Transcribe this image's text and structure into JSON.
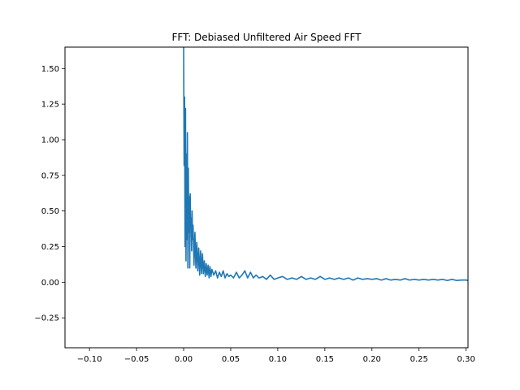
{
  "chart_data": {
    "type": "line",
    "title": "FFT: Debiased Unfiltered Air Speed FFT",
    "xlabel": "",
    "ylabel": "",
    "xlim": [
      -0.126,
      0.302
    ],
    "ylim": [
      -0.46,
      1.65
    ],
    "grid": false,
    "x_ticks": [
      -0.1,
      -0.05,
      0.0,
      0.05,
      0.1,
      0.15,
      0.2,
      0.25,
      0.3
    ],
    "x_tick_labels": [
      "−0.10",
      "−0.05",
      "0.00",
      "0.05",
      "0.10",
      "0.15",
      "0.20",
      "0.25",
      "0.30"
    ],
    "y_ticks": [
      -0.25,
      0.0,
      0.25,
      0.5,
      0.75,
      1.0,
      1.25,
      1.5
    ],
    "y_tick_labels": [
      "−0.25",
      "0.00",
      "0.25",
      "0.50",
      "0.75",
      "1.00",
      "1.25",
      "1.50"
    ],
    "series": [
      {
        "color": "#1f77b4",
        "x": [
          0.0,
          0.0005,
          0.001,
          0.0015,
          0.002,
          0.0025,
          0.003,
          0.0035,
          0.004,
          0.0045,
          0.005,
          0.0055,
          0.006,
          0.0065,
          0.007,
          0.0075,
          0.008,
          0.0085,
          0.009,
          0.0095,
          0.01,
          0.011,
          0.012,
          0.013,
          0.014,
          0.015,
          0.016,
          0.017,
          0.018,
          0.019,
          0.02,
          0.021,
          0.022,
          0.023,
          0.024,
          0.025,
          0.026,
          0.027,
          0.028,
          0.029,
          0.03,
          0.032,
          0.034,
          0.036,
          0.038,
          0.04,
          0.042,
          0.044,
          0.046,
          0.048,
          0.05,
          0.053,
          0.056,
          0.059,
          0.062,
          0.065,
          0.068,
          0.071,
          0.074,
          0.077,
          0.08,
          0.084,
          0.088,
          0.092,
          0.096,
          0.1,
          0.105,
          0.11,
          0.115,
          0.12,
          0.125,
          0.13,
          0.135,
          0.14,
          0.145,
          0.15,
          0.155,
          0.16,
          0.165,
          0.17,
          0.175,
          0.18,
          0.185,
          0.19,
          0.195,
          0.2,
          0.205,
          0.21,
          0.215,
          0.22,
          0.225,
          0.23,
          0.235,
          0.24,
          0.245,
          0.25,
          0.255,
          0.26,
          0.265,
          0.27,
          0.275,
          0.28,
          0.285,
          0.29,
          0.295,
          0.3,
          0.302
        ],
        "y": [
          1.65,
          0.82,
          1.3,
          0.25,
          1.22,
          0.15,
          0.9,
          0.3,
          1.05,
          0.1,
          0.8,
          0.35,
          0.6,
          0.1,
          0.62,
          0.38,
          0.45,
          0.22,
          0.5,
          0.3,
          0.4,
          0.12,
          0.35,
          0.1,
          0.28,
          0.08,
          0.24,
          0.05,
          0.22,
          0.06,
          0.2,
          0.06,
          0.15,
          0.04,
          0.13,
          0.05,
          0.12,
          0.03,
          0.11,
          0.04,
          0.09,
          0.05,
          0.08,
          0.03,
          0.07,
          0.04,
          0.08,
          0.03,
          0.06,
          0.04,
          0.05,
          0.03,
          0.07,
          0.03,
          0.05,
          0.08,
          0.03,
          0.07,
          0.03,
          0.05,
          0.03,
          0.04,
          0.02,
          0.05,
          0.02,
          0.03,
          0.04,
          0.02,
          0.03,
          0.02,
          0.04,
          0.02,
          0.03,
          0.02,
          0.04,
          0.02,
          0.03,
          0.02,
          0.03,
          0.02,
          0.03,
          0.015,
          0.03,
          0.02,
          0.025,
          0.02,
          0.025,
          0.015,
          0.025,
          0.015,
          0.02,
          0.015,
          0.025,
          0.015,
          0.02,
          0.015,
          0.02,
          0.015,
          0.02,
          0.015,
          0.02,
          0.012,
          0.02,
          0.012,
          0.015,
          0.015,
          0.012
        ]
      }
    ]
  }
}
